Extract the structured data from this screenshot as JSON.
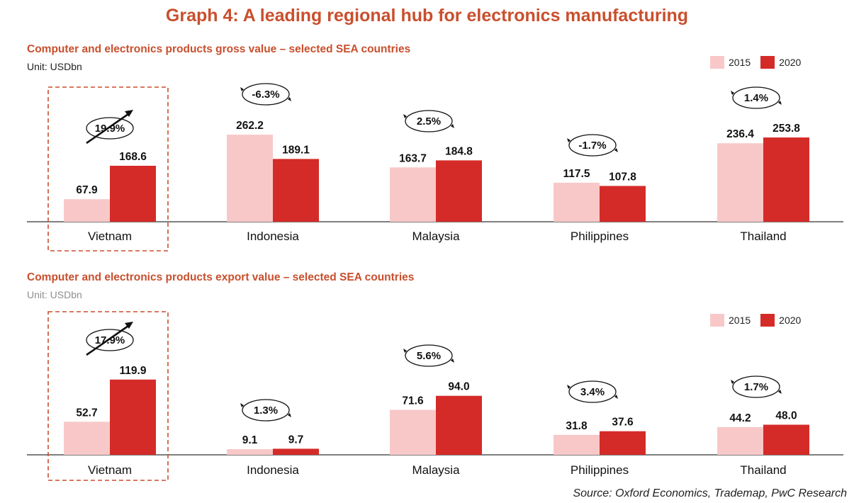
{
  "title": "Graph 4: A leading regional hub for electronics manufacturing",
  "source": "Source: Oxford Economics, Trademap, PwC Research",
  "colors": {
    "s2015": "#f8c8c8",
    "s2020": "#d52b28",
    "accent": "#c94f2d",
    "highlight": "#c94f2d"
  },
  "chart_data": [
    {
      "type": "bar",
      "title": "Computer and electronics products gross value – selected SEA countries",
      "unit": "Unit: USDbn",
      "categories": [
        "Vietnam",
        "Indonesia",
        "Malaysia",
        "Philippines",
        "Thailand"
      ],
      "series": [
        {
          "name": "2015",
          "values": [
            67.9,
            262.2,
            163.7,
            117.5,
            236.4
          ],
          "labels": [
            "67.9",
            "262.2",
            "163.7",
            "117.5",
            "236.4"
          ]
        },
        {
          "name": "2020",
          "values": [
            168.6,
            189.1,
            184.8,
            107.8,
            253.8
          ],
          "labels": [
            "168.6",
            "189.1",
            "184.8",
            "107.8",
            "253.8"
          ]
        }
      ],
      "growth": [
        "19.9%",
        "-6.3%",
        "2.5%",
        "-1.7%",
        "1.4%"
      ],
      "highlight_category": "Vietnam",
      "legend_position": "top-right"
    },
    {
      "type": "bar",
      "title": "Computer and electronics products export value – selected SEA countries",
      "unit": "Unit: USDbn",
      "categories": [
        "Vietnam",
        "Indonesia",
        "Malaysia",
        "Philippines",
        "Thailand"
      ],
      "series": [
        {
          "name": "2015",
          "values": [
            52.7,
            9.1,
            71.6,
            31.8,
            44.2
          ],
          "labels": [
            "52.7",
            "9.1",
            "71.6",
            "31.8",
            "44.2"
          ]
        },
        {
          "name": "2020",
          "values": [
            119.9,
            9.7,
            94.0,
            37.6,
            48.0
          ],
          "labels": [
            "119.9",
            "9.7",
            "94.0",
            "37.6",
            "48.0"
          ]
        }
      ],
      "growth": [
        "17.9%",
        "1.3%",
        "5.6%",
        "3.4%",
        "1.7%"
      ],
      "highlight_category": "Vietnam",
      "legend_position": "top-right"
    }
  ]
}
